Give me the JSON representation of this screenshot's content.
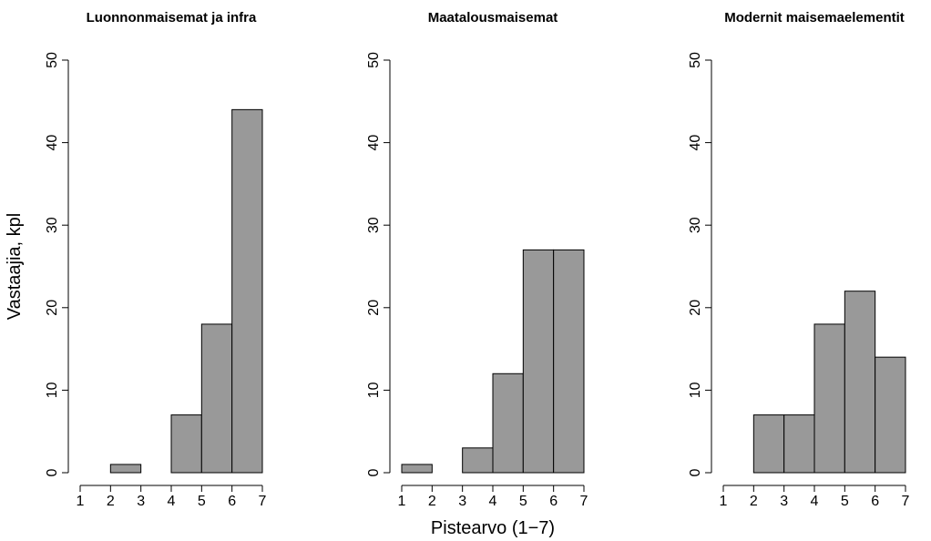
{
  "chart_data": [
    {
      "type": "histogram",
      "title": "Luonnonmaisemat ja infra",
      "y_label": "Vastaajia, kpl",
      "bins": [
        1,
        2,
        3,
        4,
        5,
        6,
        7
      ],
      "values": [
        0,
        1,
        0,
        7,
        18,
        44
      ],
      "color": "#999999",
      "xlim": [
        1,
        7
      ],
      "xticks": [
        1,
        2,
        3,
        4,
        5,
        6,
        7
      ],
      "ylim": [
        0,
        50
      ],
      "yticks": [
        0,
        10,
        20,
        30,
        40,
        50
      ]
    },
    {
      "type": "histogram",
      "title": "Maatalousmaisemat",
      "x_label": "Pistearvo (1−7)",
      "bins": [
        1,
        2,
        3,
        4,
        5,
        6,
        7
      ],
      "values": [
        1,
        0,
        3,
        12,
        27,
        27
      ],
      "color": "#999999",
      "xlim": [
        1,
        7
      ],
      "xticks": [
        1,
        2,
        3,
        4,
        5,
        6,
        7
      ],
      "ylim": [
        0,
        50
      ],
      "yticks": [
        0,
        10,
        20,
        30,
        40,
        50
      ]
    },
    {
      "type": "histogram",
      "title": "Modernit maisemaelementit",
      "bins": [
        1,
        2,
        3,
        4,
        5,
        6,
        7
      ],
      "values": [
        0,
        7,
        7,
        18,
        22,
        14
      ],
      "color": "#999999",
      "xlim": [
        1,
        7
      ],
      "xticks": [
        1,
        2,
        3,
        4,
        5,
        6,
        7
      ],
      "ylim": [
        0,
        50
      ],
      "yticks": [
        0,
        10,
        20,
        30,
        40,
        50
      ]
    }
  ]
}
